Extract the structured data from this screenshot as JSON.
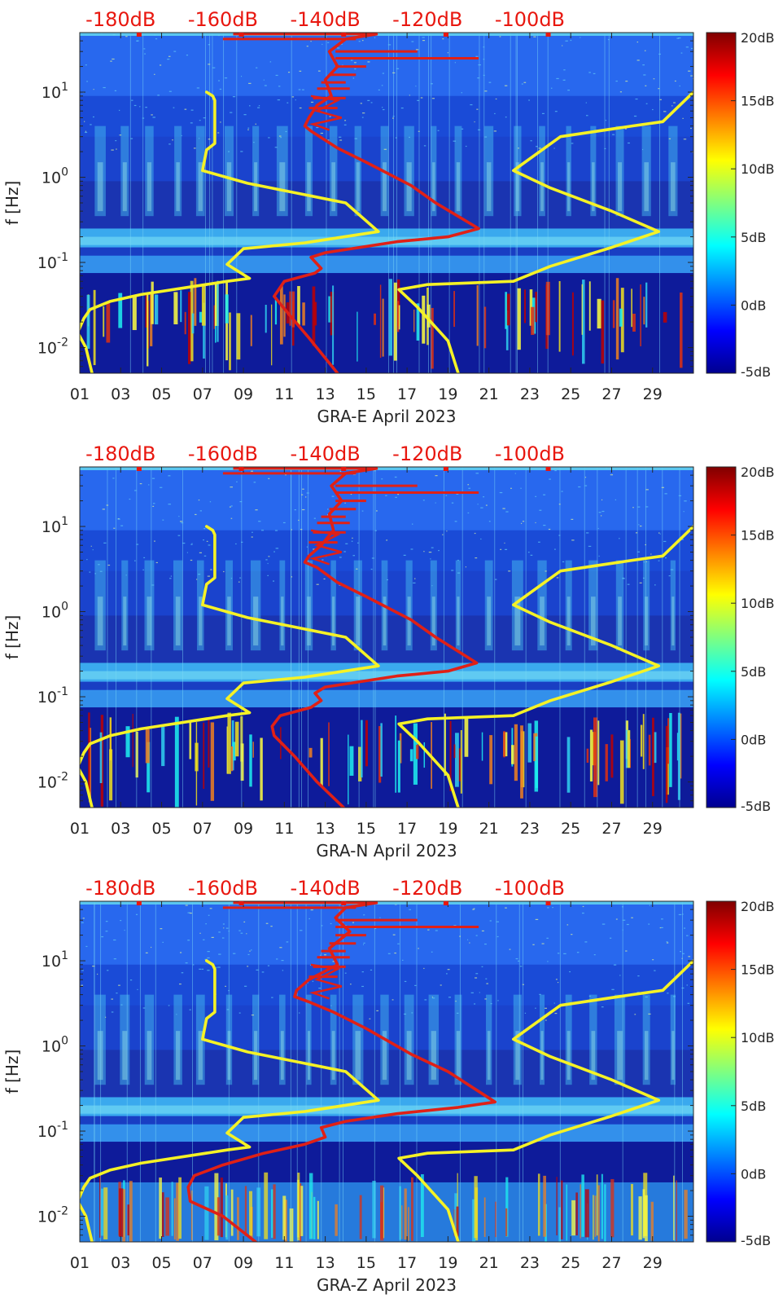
{
  "chart_data": [
    {
      "type": "heatmap",
      "xlabel": "GRA-E April 2023",
      "ylabel": "f [Hz]",
      "x_ticks": [
        "01",
        "03",
        "05",
        "07",
        "09",
        "11",
        "13",
        "15",
        "17",
        "19",
        "21",
        "23",
        "25",
        "27",
        "29"
      ],
      "xlim": [
        1,
        31
      ],
      "ylim": [
        0.005,
        50
      ],
      "yscale": "log",
      "y_ticks": [
        {
          "value": 0.01,
          "base": "10",
          "exp": "-2"
        },
        {
          "value": 0.1,
          "base": "10",
          "exp": "-1"
        },
        {
          "value": 1,
          "base": "10",
          "exp": "0"
        },
        {
          "value": 10,
          "base": "10",
          "exp": "1"
        }
      ],
      "top_axis_labels": [
        "-180dB",
        "-160dB",
        "-140dB",
        "-120dB",
        "-100dB"
      ],
      "colorbar": {
        "ticks": [
          "20dB",
          "15dB",
          "10dB",
          "5dB",
          "0dB",
          "-5dB"
        ],
        "range": [
          -5,
          20
        ]
      },
      "series": [
        {
          "name": "yellow-low-noise-model",
          "color": "#f5f226",
          "points": [
            [
              7.2,
              10
            ],
            [
              7.5,
              9
            ],
            [
              7.6,
              8
            ],
            [
              7.6,
              2.5
            ],
            [
              7.2,
              2.1
            ],
            [
              7.0,
              1.2
            ],
            [
              9.2,
              0.85
            ],
            [
              14,
              0.5
            ],
            [
              15.6,
              0.23
            ],
            [
              12,
              0.17
            ],
            [
              9,
              0.145
            ],
            [
              8.2,
              0.095
            ],
            [
              9.3,
              0.065
            ],
            [
              8.2,
              0.06
            ],
            [
              4,
              0.042
            ],
            [
              2.5,
              0.035
            ],
            [
              1.5,
              0.028
            ],
            [
              1.2,
              0.022
            ],
            [
              0.9,
              0.015
            ],
            [
              1.3,
              0.01
            ],
            [
              1.6,
              0.005
            ]
          ]
        },
        {
          "name": "yellow-high-noise-model",
          "color": "#f5f226",
          "points": [
            [
              31,
              10
            ],
            [
              29.5,
              4.5
            ],
            [
              28,
              4
            ],
            [
              24.5,
              3
            ],
            [
              22.2,
              1.2
            ],
            [
              24,
              0.75
            ],
            [
              27,
              0.4
            ],
            [
              29.3,
              0.23
            ],
            [
              27,
              0.15
            ],
            [
              24,
              0.09
            ],
            [
              22.2,
              0.06
            ],
            [
              18,
              0.055
            ],
            [
              16.6,
              0.048
            ],
            [
              17.5,
              0.03
            ],
            [
              19,
              0.012
            ],
            [
              19.5,
              0.005
            ]
          ]
        },
        {
          "name": "red-station-psd",
          "color": "#e02016",
          "points": [
            [
              15.5,
              48
            ],
            [
              14,
              42
            ],
            [
              13.2,
              30
            ],
            [
              13.6,
              20
            ],
            [
              13.0,
              14
            ],
            [
              13.3,
              9
            ],
            [
              12.6,
              7
            ],
            [
              12.2,
              5
            ],
            [
              12,
              4
            ],
            [
              12.3,
              3.5
            ],
            [
              13.6,
              2.2
            ],
            [
              15,
              1.5
            ],
            [
              17.2,
              0.8
            ],
            [
              18.4,
              0.5
            ],
            [
              20.5,
              0.25
            ],
            [
              19,
              0.2
            ],
            [
              16.5,
              0.175
            ],
            [
              13,
              0.13
            ],
            [
              12.3,
              0.115
            ],
            [
              12.8,
              0.085
            ],
            [
              12.5,
              0.075
            ],
            [
              11,
              0.06
            ],
            [
              10.5,
              0.04
            ],
            [
              11.2,
              0.025
            ],
            [
              12.2,
              0.013
            ],
            [
              13.6,
              0.005
            ]
          ]
        }
      ]
    },
    {
      "type": "heatmap",
      "xlabel": "GRA-N April 2023",
      "ylabel": "f [Hz]",
      "x_ticks": [
        "01",
        "03",
        "05",
        "07",
        "09",
        "11",
        "13",
        "15",
        "17",
        "19",
        "21",
        "23",
        "25",
        "27",
        "29"
      ],
      "xlim": [
        1,
        31
      ],
      "ylim": [
        0.005,
        50
      ],
      "yscale": "log",
      "y_ticks": [
        {
          "value": 0.01,
          "base": "10",
          "exp": "-2"
        },
        {
          "value": 0.1,
          "base": "10",
          "exp": "-1"
        },
        {
          "value": 1,
          "base": "10",
          "exp": "0"
        },
        {
          "value": 10,
          "base": "10",
          "exp": "1"
        }
      ],
      "top_axis_labels": [
        "-180dB",
        "-160dB",
        "-140dB",
        "-120dB",
        "-100dB"
      ],
      "colorbar": {
        "ticks": [
          "20dB",
          "15dB",
          "10dB",
          "5dB",
          "0dB",
          "-5dB"
        ],
        "range": [
          -5,
          20
        ]
      },
      "series": [
        {
          "name": "yellow-low-noise-model",
          "color": "#f5f226",
          "points": [
            [
              7.2,
              10
            ],
            [
              7.5,
              9
            ],
            [
              7.6,
              8
            ],
            [
              7.6,
              2.5
            ],
            [
              7.2,
              2.1
            ],
            [
              7.0,
              1.2
            ],
            [
              9.2,
              0.85
            ],
            [
              14,
              0.5
            ],
            [
              15.6,
              0.23
            ],
            [
              12,
              0.17
            ],
            [
              9,
              0.145
            ],
            [
              8.2,
              0.095
            ],
            [
              9.3,
              0.065
            ],
            [
              8.2,
              0.06
            ],
            [
              4,
              0.042
            ],
            [
              2.5,
              0.035
            ],
            [
              1.5,
              0.028
            ],
            [
              1.2,
              0.022
            ],
            [
              0.9,
              0.015
            ],
            [
              1.3,
              0.01
            ],
            [
              1.6,
              0.005
            ]
          ]
        },
        {
          "name": "yellow-high-noise-model",
          "color": "#f5f226",
          "points": [
            [
              31,
              10
            ],
            [
              29.5,
              4.5
            ],
            [
              28,
              4
            ],
            [
              24.5,
              3
            ],
            [
              22.2,
              1.2
            ],
            [
              24,
              0.75
            ],
            [
              27,
              0.4
            ],
            [
              29.3,
              0.23
            ],
            [
              27,
              0.15
            ],
            [
              24,
              0.09
            ],
            [
              22.2,
              0.06
            ],
            [
              18,
              0.055
            ],
            [
              16.6,
              0.048
            ],
            [
              17.5,
              0.03
            ],
            [
              19,
              0.012
            ],
            [
              19.5,
              0.005
            ]
          ]
        },
        {
          "name": "red-station-psd",
          "color": "#e02016",
          "points": [
            [
              15.5,
              48
            ],
            [
              14,
              42
            ],
            [
              13.3,
              30
            ],
            [
              13.8,
              20
            ],
            [
              13.2,
              14
            ],
            [
              13.4,
              9
            ],
            [
              12.8,
              6
            ],
            [
              12.2,
              4.5
            ],
            [
              12,
              3.8
            ],
            [
              12.6,
              3.3
            ],
            [
              13.6,
              2.2
            ],
            [
              15,
              1.5
            ],
            [
              17.2,
              0.8
            ],
            [
              18.4,
              0.5
            ],
            [
              20.4,
              0.25
            ],
            [
              19,
              0.2
            ],
            [
              16.5,
              0.175
            ],
            [
              13,
              0.13
            ],
            [
              12.5,
              0.11
            ],
            [
              12.8,
              0.09
            ],
            [
              12.3,
              0.075
            ],
            [
              10.8,
              0.06
            ],
            [
              10.4,
              0.045
            ],
            [
              10.5,
              0.035
            ],
            [
              11.5,
              0.02
            ],
            [
              12.6,
              0.01
            ],
            [
              13.9,
              0.005
            ]
          ]
        }
      ]
    },
    {
      "type": "heatmap",
      "xlabel": "GRA-Z April 2023",
      "ylabel": "f [Hz]",
      "x_ticks": [
        "01",
        "03",
        "05",
        "07",
        "09",
        "11",
        "13",
        "15",
        "17",
        "19",
        "21",
        "23",
        "25",
        "27",
        "29"
      ],
      "xlim": [
        1,
        31
      ],
      "ylim": [
        0.005,
        50
      ],
      "yscale": "log",
      "y_ticks": [
        {
          "value": 0.01,
          "base": "10",
          "exp": "-2"
        },
        {
          "value": 0.1,
          "base": "10",
          "exp": "-1"
        },
        {
          "value": 1,
          "base": "10",
          "exp": "0"
        },
        {
          "value": 10,
          "base": "10",
          "exp": "1"
        }
      ],
      "top_axis_labels": [
        "-180dB",
        "-160dB",
        "-140dB",
        "-120dB",
        "-100dB"
      ],
      "colorbar": {
        "ticks": [
          "20dB",
          "15dB",
          "10dB",
          "5dB",
          "0dB",
          "-5dB"
        ],
        "range": [
          -5,
          20
        ]
      },
      "series": [
        {
          "name": "yellow-low-noise-model",
          "color": "#f5f226",
          "points": [
            [
              7.2,
              10
            ],
            [
              7.5,
              9
            ],
            [
              7.6,
              8
            ],
            [
              7.6,
              2.5
            ],
            [
              7.2,
              2.1
            ],
            [
              7.0,
              1.2
            ],
            [
              9.2,
              0.85
            ],
            [
              14,
              0.5
            ],
            [
              15.6,
              0.23
            ],
            [
              12,
              0.17
            ],
            [
              9,
              0.145
            ],
            [
              8.2,
              0.095
            ],
            [
              9.3,
              0.065
            ],
            [
              8.2,
              0.06
            ],
            [
              4,
              0.042
            ],
            [
              2.5,
              0.035
            ],
            [
              1.5,
              0.028
            ],
            [
              1.2,
              0.022
            ],
            [
              0.9,
              0.015
            ],
            [
              1.3,
              0.01
            ],
            [
              1.6,
              0.005
            ]
          ]
        },
        {
          "name": "yellow-high-noise-model",
          "color": "#f5f226",
          "points": [
            [
              31,
              10
            ],
            [
              29.5,
              4.5
            ],
            [
              28,
              4
            ],
            [
              24.5,
              3
            ],
            [
              22.2,
              1.2
            ],
            [
              24,
              0.75
            ],
            [
              27,
              0.4
            ],
            [
              29.3,
              0.23
            ],
            [
              27,
              0.15
            ],
            [
              24,
              0.09
            ],
            [
              22.2,
              0.06
            ],
            [
              18,
              0.055
            ],
            [
              16.6,
              0.048
            ],
            [
              17.5,
              0.03
            ],
            [
              19,
              0.012
            ],
            [
              19.5,
              0.005
            ]
          ]
        },
        {
          "name": "red-station-psd",
          "color": "#e02016",
          "points": [
            [
              15.5,
              48
            ],
            [
              14,
              42
            ],
            [
              13.5,
              32
            ],
            [
              14.2,
              22
            ],
            [
              13.2,
              14
            ],
            [
              13.6,
              9
            ],
            [
              12.2,
              6
            ],
            [
              11.6,
              4.5
            ],
            [
              11.5,
              3.8
            ],
            [
              12.2,
              3.3
            ],
            [
              13.4,
              2.5
            ],
            [
              15,
              1.6
            ],
            [
              17.2,
              0.8
            ],
            [
              19,
              0.5
            ],
            [
              21.3,
              0.22
            ],
            [
              19.5,
              0.19
            ],
            [
              16.5,
              0.16
            ],
            [
              14,
              0.13
            ],
            [
              12.8,
              0.11
            ],
            [
              13,
              0.085
            ],
            [
              12,
              0.07
            ],
            [
              10,
              0.055
            ],
            [
              8,
              0.04
            ],
            [
              6.6,
              0.03
            ],
            [
              6.3,
              0.022
            ],
            [
              6.4,
              0.015
            ],
            [
              8,
              0.01
            ],
            [
              9.6,
              0.005
            ]
          ]
        }
      ]
    }
  ]
}
